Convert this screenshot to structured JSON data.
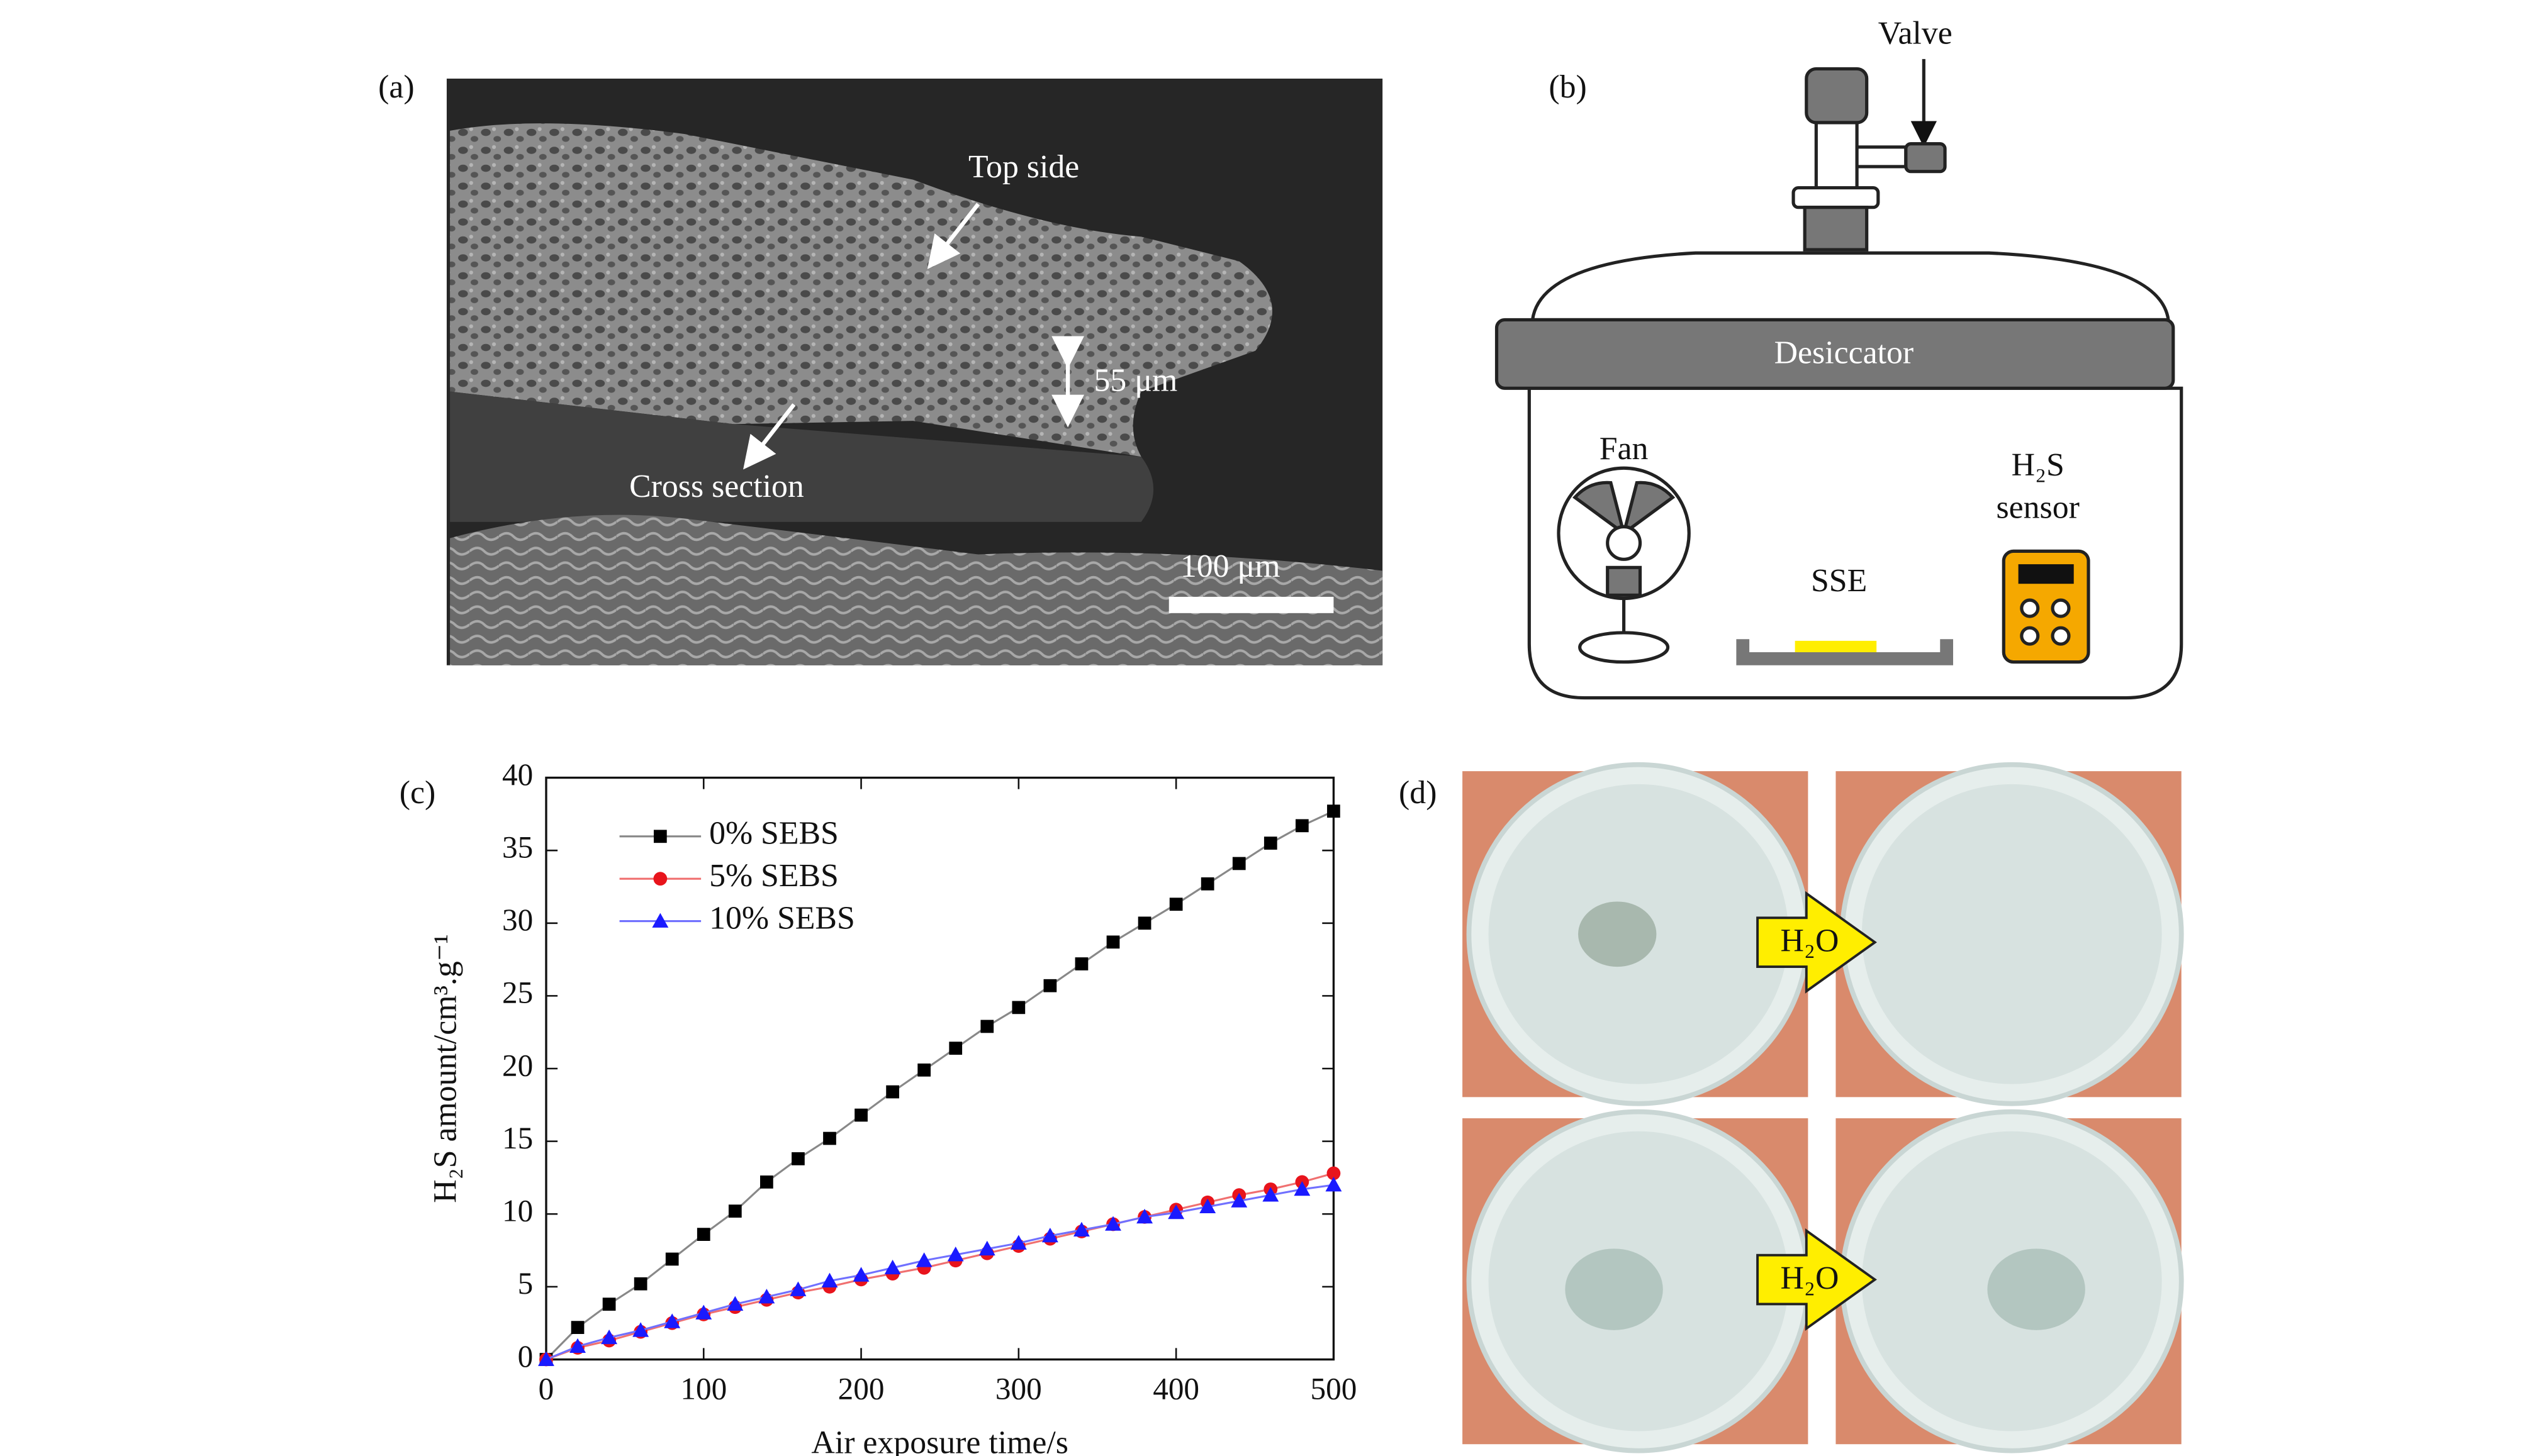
{
  "panels": {
    "a": {
      "label": "(a)",
      "annotations": [
        "Top side",
        "55 μm",
        "Cross section",
        "100 μm"
      ]
    },
    "b": {
      "label": "(b)",
      "texts": [
        "Valve",
        "Desiccator",
        "Fan",
        "H₂S",
        "sensor",
        "SSE"
      ]
    },
    "c": {
      "label": "(c)"
    },
    "d": {
      "label": "(d)",
      "texts": [
        "H₂O",
        "H₂O"
      ]
    }
  },
  "chart_data": {
    "type": "line",
    "xlabel": "Air exposure time/s",
    "ylabel": "H₂S amount/cm³.g⁻¹",
    "x": [
      0,
      20,
      40,
      60,
      80,
      100,
      120,
      140,
      160,
      180,
      200,
      220,
      240,
      260,
      280,
      300,
      320,
      340,
      360,
      380,
      400,
      420,
      440,
      460,
      480,
      500
    ],
    "series": [
      {
        "name": "0% SEBS",
        "color": "#000000",
        "line_color": "#888888",
        "marker": "square",
        "values": [
          0,
          2.2,
          3.8,
          5.2,
          6.9,
          8.6,
          10.2,
          12.2,
          13.8,
          15.2,
          16.8,
          18.4,
          19.9,
          21.4,
          22.9,
          24.2,
          25.7,
          27.2,
          28.7,
          30.0,
          31.3,
          32.7,
          34.1,
          35.5,
          36.7,
          37.7
        ]
      },
      {
        "name": "5% SEBS",
        "color": "#e8141c",
        "line_color": "#f07070",
        "marker": "circle",
        "values": [
          0,
          0.8,
          1.3,
          1.9,
          2.5,
          3.1,
          3.6,
          4.1,
          4.6,
          5.0,
          5.5,
          5.9,
          6.3,
          6.8,
          7.3,
          7.8,
          8.3,
          8.8,
          9.3,
          9.8,
          10.3,
          10.8,
          11.3,
          11.7,
          12.2,
          12.8
        ]
      },
      {
        "name": "10% SEBS",
        "color": "#1a1aff",
        "line_color": "#7070ff",
        "marker": "triangle",
        "values": [
          0,
          0.9,
          1.5,
          2.0,
          2.6,
          3.2,
          3.8,
          4.3,
          4.8,
          5.4,
          5.8,
          6.3,
          6.8,
          7.2,
          7.6,
          8.0,
          8.5,
          8.9,
          9.3,
          9.8,
          10.1,
          10.5,
          10.9,
          11.3,
          11.7,
          12.0
        ]
      }
    ],
    "xlim": [
      0,
      500
    ],
    "xticks": [
      0,
      100,
      200,
      300,
      400,
      500
    ],
    "ylim": [
      0,
      40
    ],
    "yticks": [
      0,
      5,
      10,
      15,
      20,
      25,
      30,
      35,
      40
    ],
    "legend": "upper left",
    "grid": false
  }
}
